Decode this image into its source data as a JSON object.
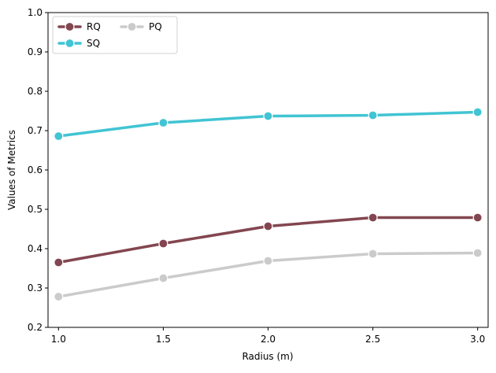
{
  "chart_data": {
    "type": "line",
    "title": "",
    "xlabel": "Radius (m)",
    "ylabel": "Values of Metrics",
    "x": [
      1.0,
      1.5,
      2.0,
      2.5,
      3.0
    ],
    "xticks": [
      "1.0",
      "1.5",
      "2.0",
      "2.5",
      "3.0"
    ],
    "yticks": [
      "0.2",
      "0.3",
      "0.4",
      "0.5",
      "0.6",
      "0.7",
      "0.8",
      "0.9",
      "1.0"
    ],
    "xlim": [
      0.95,
      3.05
    ],
    "ylim": [
      0.2,
      1.0
    ],
    "grid": false,
    "legend_position": "top-left",
    "series": [
      {
        "name": "RQ",
        "color": "#834650",
        "values": [
          0.365,
          0.413,
          0.457,
          0.479,
          0.479
        ]
      },
      {
        "name": "SQ",
        "color": "#41c4d3",
        "values": [
          0.686,
          0.72,
          0.737,
          0.739,
          0.747
        ]
      },
      {
        "name": "PQ",
        "color": "#cbcbcb",
        "values": [
          0.278,
          0.325,
          0.369,
          0.387,
          0.389
        ]
      }
    ]
  }
}
